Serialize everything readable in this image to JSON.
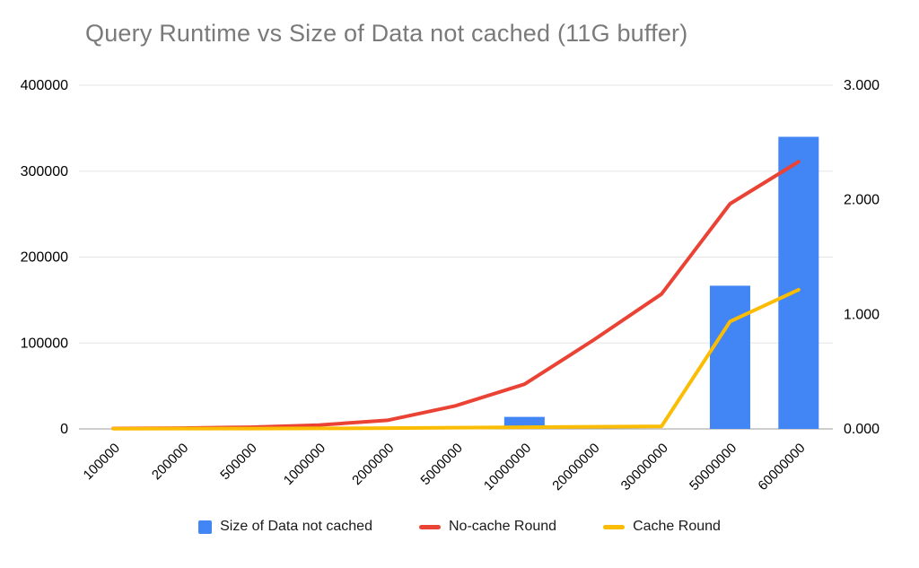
{
  "title": "Query Runtime vs Size of Data not cached (11G buffer)",
  "colors": {
    "bar": "#4285F4",
    "no_cache_line": "#EA4335",
    "cache_line": "#FBBC04",
    "gridline": "#e6e6e6",
    "baseline": "#9e9e9e",
    "axis_text": "#000000",
    "title_text": "#7a7a7a",
    "background": "#FFFFFF"
  },
  "legend": {
    "items": [
      {
        "label": "Size of Data not cached",
        "swatch": "square",
        "color_key": "bar"
      },
      {
        "label": "No-cache Round",
        "swatch": "line",
        "color_key": "no_cache_line"
      },
      {
        "label": "Cache Round",
        "swatch": "line",
        "color_key": "cache_line"
      }
    ]
  },
  "chart_data": {
    "type": "combo-bar-line",
    "title": "Query Runtime vs Size of Data not cached (11G buffer)",
    "categories": [
      "100000",
      "200000",
      "500000",
      "1000000",
      "2000000",
      "5000000",
      "10000000",
      "20000000",
      "30000000",
      "50000000",
      "60000000"
    ],
    "left_axis": {
      "min": 0,
      "max": 400000,
      "ticks": [
        "0",
        "100000",
        "200000",
        "300000",
        "400000"
      ]
    },
    "right_axis": {
      "min": 0,
      "max": 3,
      "ticks": [
        "0.000",
        "1.000",
        "2.000",
        "3.000"
      ]
    },
    "grid": true,
    "legend_position": "bottom",
    "series": [
      {
        "name": "Size of Data not cached",
        "type": "bar",
        "axis": "right",
        "values": [
          0,
          0,
          0,
          0,
          0,
          0,
          0.105,
          0,
          0,
          1.25,
          2.55
        ]
      },
      {
        "name": "No-cache Round",
        "type": "line",
        "axis": "left",
        "values": [
          500,
          900,
          2000,
          4500,
          10000,
          27000,
          52000,
          103000,
          157000,
          262000,
          311000
        ]
      },
      {
        "name": "Cache Round",
        "type": "line",
        "axis": "left",
        "values": [
          300,
          350,
          450,
          600,
          900,
          1500,
          2000,
          2500,
          3000,
          125000,
          162000
        ]
      }
    ]
  }
}
